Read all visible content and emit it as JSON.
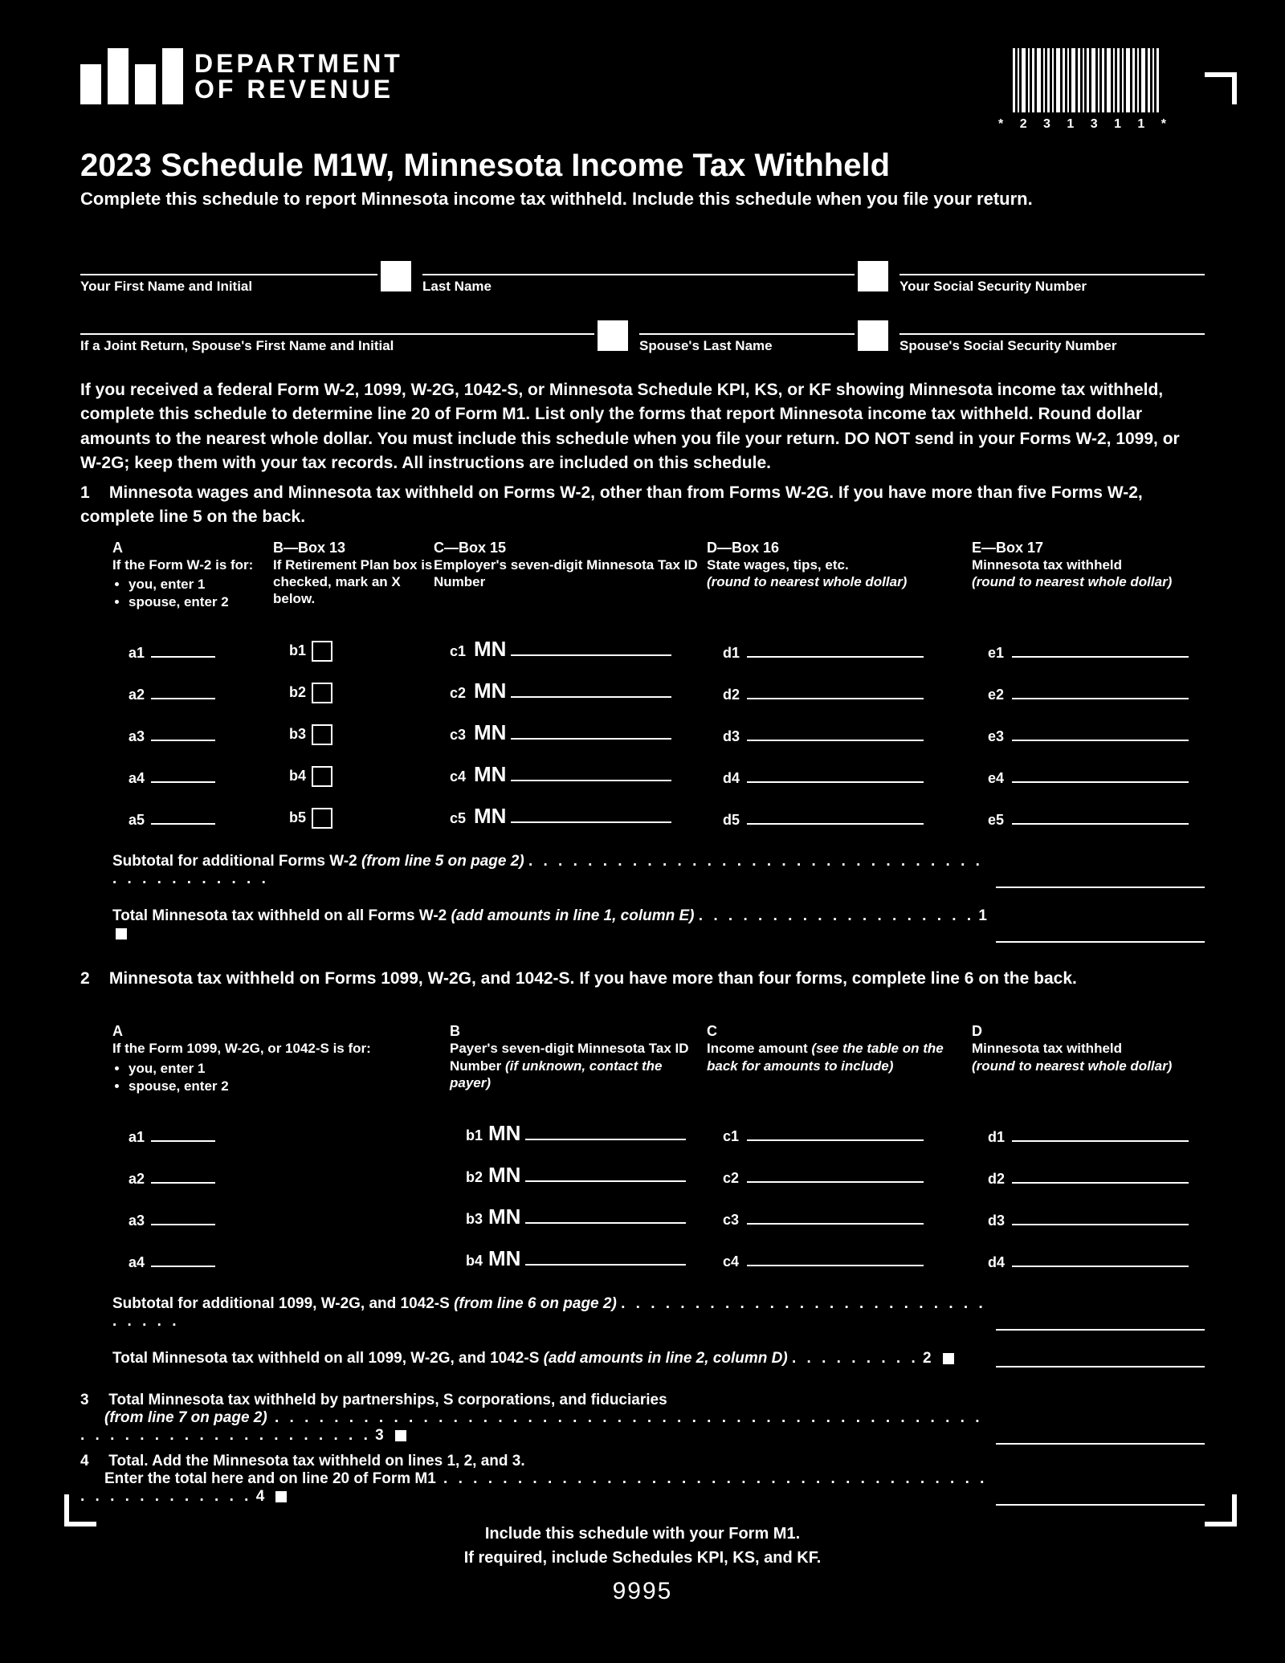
{
  "header": {
    "dept_line1": "DEPARTMENT",
    "dept_line2": "OF REVENUE",
    "barcode_label": "* 2 3 1 3 1 1 *",
    "barcode_widths": [
      3,
      2,
      5,
      2,
      3,
      5,
      2,
      3,
      2,
      5,
      3,
      2,
      5,
      3,
      2,
      3,
      5,
      2,
      3,
      5,
      2,
      3,
      2,
      5,
      3,
      2,
      5,
      3,
      2,
      3
    ],
    "title": "2023 Schedule M1W, Minnesota Income Tax Withheld",
    "subtitle": "Complete this schedule to report Minnesota income tax withheld. Include this schedule when you file your return."
  },
  "name_fields": {
    "row1": {
      "c1": "Your First Name and Initial",
      "c2": "Last Name",
      "c3": "Your Social Security Number"
    },
    "row2": {
      "c1": "If a Joint Return, Spouse's First Name and Initial",
      "c2": "Spouse's Last Name",
      "c3": "Spouse's Social Security Number"
    }
  },
  "instructions": {
    "para": "If you received a federal Form W-2, 1099, W-2G, 1042-S, or Minnesota Schedule KPI, KS, or KF showing Minnesota income tax withheld, complete this schedule to determine line 20 of Form M1. List only the forms that report Minnesota income tax withheld. Round dollar amounts to the nearest whole dollar. You must include this schedule when you file your return. DO NOT send in your Forms W-2, 1099, or W-2G; keep them with your tax records. All instructions are included on this schedule.",
    "line1": "Minnesota wages and Minnesota tax withheld on Forms W-2, other than from Forms W-2G. If you have more than five Forms W-2, complete line 5 on the back."
  },
  "section1": {
    "cols": {
      "A": {
        "head": "A",
        "sub": "If the Form W-2 is for:",
        "b1": "you, enter 1",
        "b2": "spouse, enter 2"
      },
      "B": {
        "head": "B—Box 13",
        "sub": "If Retirement Plan box is checked, mark an X below."
      },
      "C": {
        "head": "C—Box 15",
        "sub": "Employer's seven-digit Minnesota Tax ID Number"
      },
      "D": {
        "head": "D—Box 16",
        "sub": "State wages, tips, etc.",
        "em": "(round to nearest whole dollar)"
      },
      "E": {
        "head": "E—Box 17",
        "sub": "Minnesota tax withheld",
        "em": "(round to nearest whole dollar)"
      }
    },
    "rows": [
      {
        "a": "a1",
        "b": "b1",
        "c": "c1",
        "d": "d1",
        "e": "e1"
      },
      {
        "a": "a2",
        "b": "b2",
        "c": "c2",
        "d": "d2",
        "e": "e2"
      },
      {
        "a": "a3",
        "b": "b3",
        "c": "c3",
        "d": "d3",
        "e": "e3"
      },
      {
        "a": "a4",
        "b": "b4",
        "c": "c4",
        "d": "d4",
        "e": "e4"
      },
      {
        "a": "a5",
        "b": "b5",
        "c": "c5",
        "d": "d5",
        "e": "e5"
      }
    ],
    "mn_label": "MN",
    "subtotal": "Subtotal for additional Forms W-2 ",
    "subtotal_em": "(from line 5 on page 2)",
    "total": "Total Minnesota tax withheld on all Forms W-2 ",
    "total_em": "(add amounts in line 1, column E)",
    "total_num": "1"
  },
  "section2": {
    "intro": "Minnesota tax withheld on Forms 1099, W-2G, and 1042-S. If you have more than four forms, complete line 6 on the back.",
    "cols": {
      "A": {
        "head": "A",
        "sub": "If the Form 1099, W-2G, or 1042-S is for:",
        "b1": "you, enter 1",
        "b2": "spouse, enter 2"
      },
      "B": {
        "head": "B",
        "sub": "Payer's seven-digit Minnesota Tax ID Number ",
        "em": "(if unknown, contact the payer)"
      },
      "C": {
        "head": "C",
        "sub": "Income amount ",
        "em": "(see the table on the back for amounts to include)"
      },
      "D": {
        "head": "D",
        "sub": "Minnesota tax withheld",
        "em": "(round to nearest whole dollar)"
      }
    },
    "rows": [
      {
        "a": "a1",
        "b": "b1",
        "c": "c1",
        "d": "d1"
      },
      {
        "a": "a2",
        "b": "b2",
        "c": "c2",
        "d": "d2"
      },
      {
        "a": "a3",
        "b": "b3",
        "c": "c3",
        "d": "d3"
      },
      {
        "a": "a4",
        "b": "b4",
        "c": "c4",
        "d": "d4"
      }
    ],
    "mn_label": "MN",
    "subtotal": "Subtotal for additional 1099, W-2G, and 1042-S ",
    "subtotal_em": "(from line 6 on page 2)",
    "total": "Total Minnesota tax withheld on all 1099, W-2G, and 1042-S ",
    "total_em": "(add amounts in line 2, column D)",
    "total_num": "2"
  },
  "section3": {
    "num": "3",
    "text": "Total Minnesota tax withheld by partnerships, S corporations, and fiduciaries",
    "em": "(from line 7 on page 2)",
    "line_num": "3"
  },
  "section4": {
    "num": "4",
    "text": "Total. Add the Minnesota tax withheld on lines 1, 2, and 3.",
    "sub": "Enter the total here and on line 20 of Form M1",
    "line_num": "4"
  },
  "footer": {
    "l1": "Include this schedule with your Form M1.",
    "l2": "If required, include Schedules KPI, KS, and KF.",
    "form_num": "9995"
  },
  "colors": {
    "bg": "#000000",
    "fg": "#ffffff"
  }
}
